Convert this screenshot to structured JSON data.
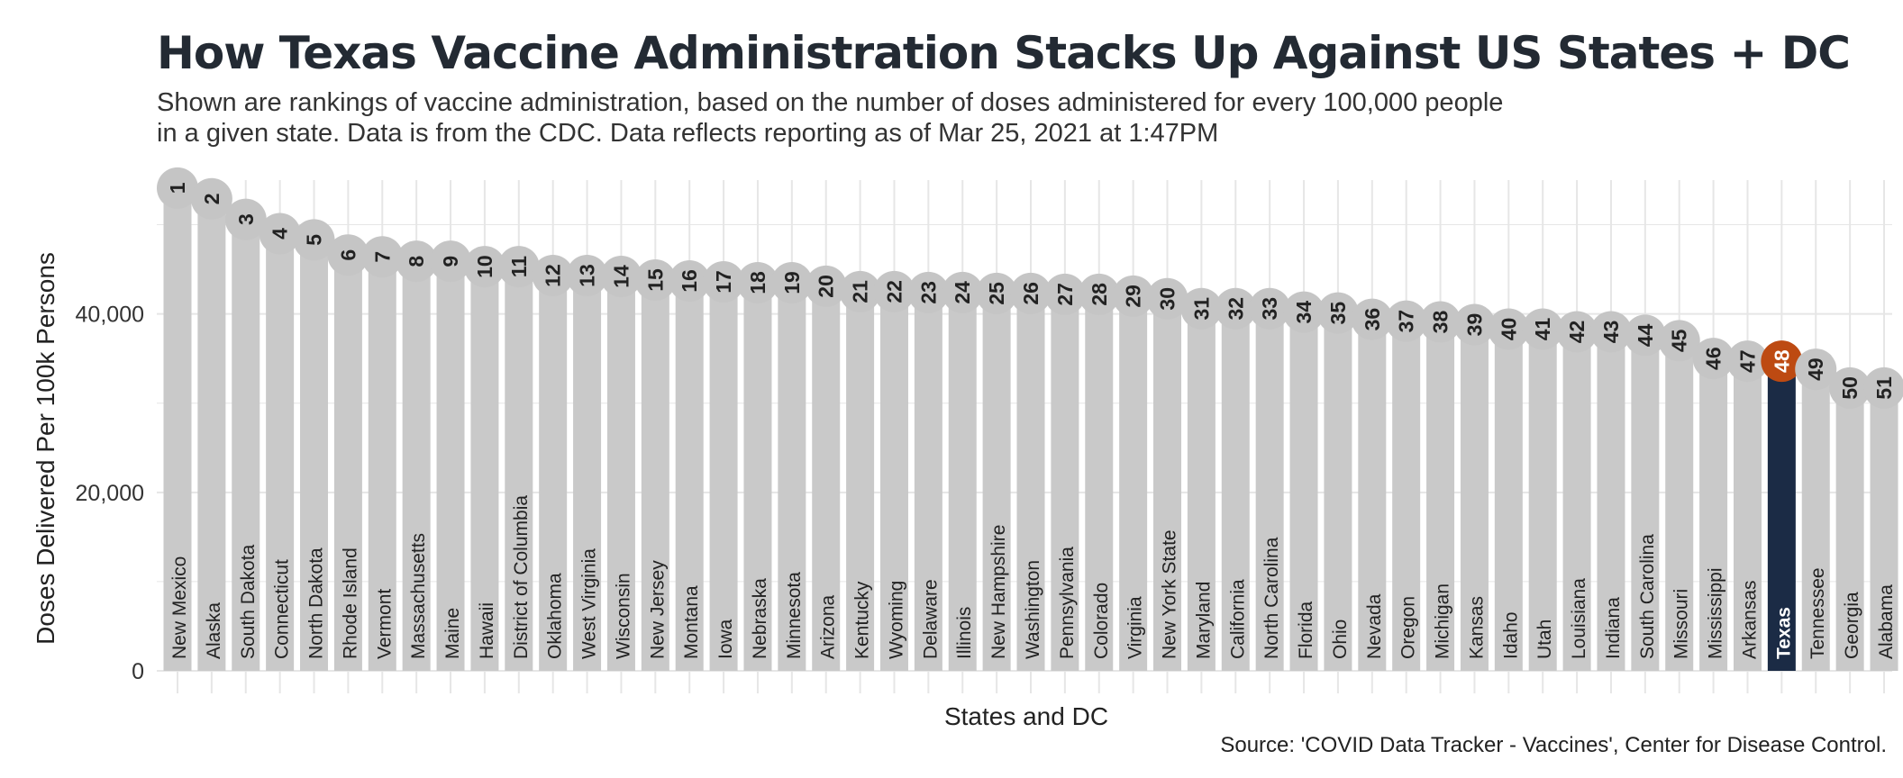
{
  "title": "How Texas Vaccine Administration Stacks Up Against US States + DC",
  "subtitle_line1": "Shown are rankings of vaccine administration, based on the number of doses administered for every 100,000 people",
  "subtitle_line2": "in a given state. Data is from the CDC. Data reflects reporting as of Mar 25, 2021 at 1:47PM",
  "source": "Source: 'COVID Data Tracker - Vaccines', Center for Disease Control.",
  "colors": {
    "bar": "#c9c9c9",
    "highlight_bar": "#1b2b45",
    "circle": "#c5c5c5",
    "highlight_circle": "#bd4a12",
    "grid": "#e6e6e6"
  },
  "chart_data": {
    "type": "bar",
    "xlabel": "States and DC",
    "ylabel": "Doses Delivered Per 100k Persons",
    "ylim": [
      0,
      55000
    ],
    "yticks": [
      0,
      20000,
      40000
    ],
    "ytick_labels": [
      "0",
      "20,000",
      "40,000"
    ],
    "grid": true,
    "highlight": "Texas",
    "categories": [
      "New Mexico",
      "Alaska",
      "South Dakota",
      "Connecticut",
      "North Dakota",
      "Rhode Island",
      "Vermont",
      "Massachusetts",
      "Maine",
      "Hawaii",
      "District of Columbia",
      "Oklahoma",
      "West Virginia",
      "Wisconsin",
      "New Jersey",
      "Montana",
      "Iowa",
      "Nebraska",
      "Minnesota",
      "Arizona",
      "Kentucky",
      "Wyoming",
      "Delaware",
      "Illinois",
      "New Hampshire",
      "Washington",
      "Pennsylvania",
      "Colorado",
      "Virginia",
      "New York State",
      "Maryland",
      "California",
      "North Carolina",
      "Florida",
      "Ohio",
      "Nevada",
      "Oregon",
      "Michigan",
      "Kansas",
      "Idaho",
      "Utah",
      "Louisiana",
      "Indiana",
      "South Carolina",
      "Missouri",
      "Mississippi",
      "Arkansas",
      "Texas",
      "Tennessee",
      "Georgia",
      "Alabama"
    ],
    "ranks": [
      "1",
      "2",
      "3",
      "4",
      "5",
      "6",
      "7",
      "8",
      "9",
      "10",
      "11",
      "12",
      "13",
      "14",
      "15",
      "16",
      "17",
      "18",
      "19",
      "20",
      "21",
      "22",
      "23",
      "24",
      "25",
      "26",
      "27",
      "28",
      "29",
      "30",
      "31",
      "32",
      "33",
      "34",
      "35",
      "36",
      "37",
      "38",
      "39",
      "40",
      "41",
      "42",
      "43",
      "44",
      "45",
      "46",
      "47",
      "48",
      "49",
      "50",
      "51"
    ],
    "values": [
      54100,
      52900,
      50600,
      49000,
      48300,
      46600,
      46400,
      45900,
      45900,
      45300,
      45300,
      44300,
      44300,
      44200,
      43800,
      43700,
      43600,
      43500,
      43500,
      43100,
      42500,
      42500,
      42400,
      42400,
      42300,
      42300,
      42200,
      42200,
      42000,
      41700,
      40600,
      40600,
      40600,
      40200,
      40100,
      39400,
      39200,
      39100,
      38800,
      38300,
      38300,
      38000,
      38000,
      37600,
      37000,
      35000,
      34700,
      34700,
      33800,
      31700,
      31700
    ]
  }
}
